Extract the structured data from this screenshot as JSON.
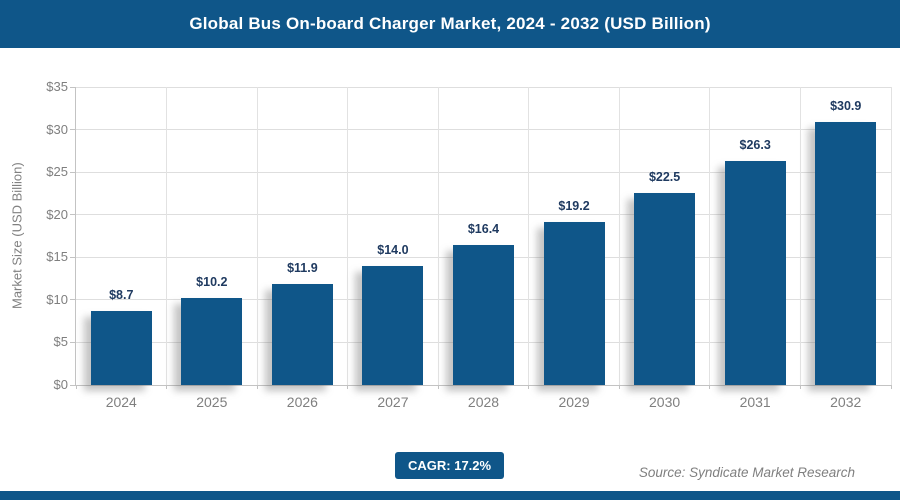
{
  "header": {
    "title": "Global Bus On-board Charger Market, 2024 - 2032 (USD Billion)"
  },
  "chart_data": {
    "type": "bar",
    "categories": [
      "2024",
      "2025",
      "2026",
      "2027",
      "2028",
      "2029",
      "2030",
      "2031",
      "2032"
    ],
    "values": [
      8.7,
      10.2,
      11.9,
      14.0,
      16.4,
      19.2,
      22.5,
      26.3,
      30.9
    ],
    "bar_labels": [
      "$8.7",
      "$10.2",
      "$11.9",
      "$14.0",
      "$16.4",
      "$19.2",
      "$22.5",
      "$26.3",
      "$30.9"
    ],
    "title": "Global Bus On-board Charger Market, 2024 - 2032 (USD Billion)",
    "xlabel": "",
    "ylabel": "Market Size (USD Billion)",
    "ylim": [
      0,
      35
    ],
    "ytick_step": 5,
    "ytick_labels": [
      "$0",
      "$5",
      "$10",
      "$15",
      "$20",
      "$25",
      "$30",
      "$35"
    ],
    "grid": true,
    "legend": false,
    "bar_color": "#0f5689",
    "bar_value_label_color": "#1f3a60",
    "axis_text_color": "#7f7f7f",
    "gridline_color": "#dedede"
  },
  "footer": {
    "cagr_label": "CAGR: 17.2%",
    "source": "Source: Syndicate Market Research"
  },
  "colors": {
    "primary_blue": "#0f5689",
    "white": "#ffffff"
  }
}
